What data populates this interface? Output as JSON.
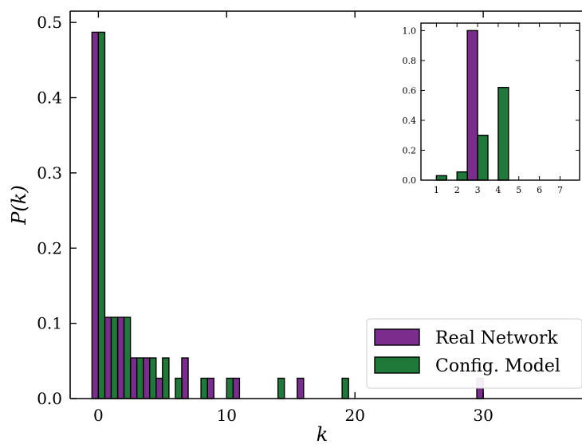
{
  "chart_data": [
    {
      "type": "bar",
      "xlabel": "k",
      "ylabel": "P(k)",
      "xlim": [
        -2.2,
        37.7
      ],
      "ylim": [
        0,
        0.515
      ],
      "xticks": [
        0,
        10,
        20,
        30
      ],
      "yticks": [
        0.0,
        0.1,
        0.2,
        0.3,
        0.4,
        0.5
      ],
      "xtick_labels": [
        "0",
        "10",
        "20",
        "30"
      ],
      "ytick_labels": [
        "0.0",
        "0.1",
        "0.2",
        "0.3",
        "0.4",
        "0.5"
      ],
      "legend_position": "bottom-right",
      "grid": false,
      "series": [
        {
          "name": "Real Network",
          "color": "#7b2d8e",
          "points": [
            [
              0,
              0.487
            ],
            [
              1,
              0.108
            ],
            [
              2,
              0.108
            ],
            [
              3,
              0.054
            ],
            [
              4,
              0.054
            ],
            [
              5,
              0.027
            ],
            [
              7,
              0.054
            ],
            [
              9,
              0.027
            ],
            [
              11,
              0.027
            ],
            [
              16,
              0.027
            ],
            [
              30,
              0.027
            ]
          ]
        },
        {
          "name": "Config. Model",
          "color": "#1f7a3a",
          "points": [
            [
              0,
              0.487
            ],
            [
              1,
              0.108
            ],
            [
              2,
              0.108
            ],
            [
              3,
              0.054
            ],
            [
              4,
              0.054
            ],
            [
              5,
              0.054
            ],
            [
              6,
              0.027
            ],
            [
              8,
              0.027
            ],
            [
              10,
              0.027
            ],
            [
              14,
              0.027
            ],
            [
              19,
              0.027
            ]
          ]
        }
      ]
    },
    {
      "type": "bar",
      "role": "inset",
      "xlim": [
        0.25,
        7.95
      ],
      "ylim": [
        0,
        1.05
      ],
      "xticks": [
        1,
        2,
        3,
        4,
        5,
        6,
        7
      ],
      "yticks": [
        0.0,
        0.2,
        0.4,
        0.6,
        0.8,
        1.0
      ],
      "xtick_labels": [
        "1",
        "2",
        "3",
        "4",
        "5",
        "6",
        "7"
      ],
      "ytick_labels": [
        "0.0",
        "0.2",
        "0.4",
        "0.6",
        "0.8",
        "1.0"
      ],
      "series": [
        {
          "name": "Real Network",
          "color": "#7b2d8e",
          "points": [
            [
              3,
              1.0
            ]
          ]
        },
        {
          "name": "Config. Model",
          "color": "#1f7a3a",
          "points": [
            [
              1,
              0.03
            ],
            [
              2,
              0.055
            ],
            [
              3,
              0.3
            ],
            [
              4,
              0.62
            ]
          ]
        }
      ]
    }
  ]
}
